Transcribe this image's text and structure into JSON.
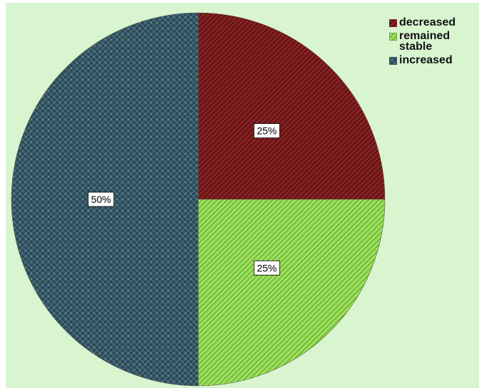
{
  "chart_data": {
    "type": "pie",
    "title": "",
    "slices": [
      {
        "label": "decreased",
        "value": 25,
        "display": "25%",
        "color": "#7a1e1e",
        "pattern": "diagonal-hatch"
      },
      {
        "label": "remained stable",
        "value": 25,
        "display": "25%",
        "color": "#8fd14f",
        "pattern": "diagonal-hatch"
      },
      {
        "label": "increased",
        "value": 50,
        "display": "50%",
        "color": "#2e4a57",
        "pattern": "crosshatch"
      }
    ],
    "legend_position": "top-right",
    "background_color": "#d9f5d0"
  },
  "legend": {
    "items": [
      {
        "label": "decreased",
        "slice": 0
      },
      {
        "label": "remained\nstable",
        "slice": 1
      },
      {
        "label": "increased",
        "slice": 2
      }
    ]
  }
}
